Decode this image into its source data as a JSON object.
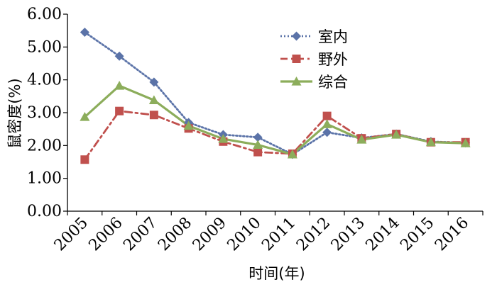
{
  "chart_data": {
    "type": "line",
    "title": "",
    "xlabel": "时间(年)",
    "ylabel": "鼠密度(%)",
    "categories": [
      "2005",
      "2006",
      "2007",
      "2008",
      "2009",
      "2010",
      "2011",
      "2012",
      "2013",
      "2014",
      "2015",
      "2016"
    ],
    "y_ticks": [
      "0.00",
      "1.00",
      "2.00",
      "3.00",
      "4.00",
      "5.00",
      "6.00"
    ],
    "ylim": [
      0,
      6
    ],
    "grid": false,
    "legend_position": "top-right",
    "series": [
      {
        "name": "室内",
        "color": "#5b73a8",
        "line_style": "dotted",
        "marker": "diamond",
        "values": [
          5.45,
          4.72,
          3.93,
          2.7,
          2.33,
          2.25,
          1.73,
          2.4,
          2.23,
          2.35,
          2.12,
          2.08
        ]
      },
      {
        "name": "野外",
        "color": "#c0504d",
        "line_style": "dashdot",
        "marker": "square",
        "values": [
          1.57,
          3.05,
          2.93,
          2.52,
          2.12,
          1.8,
          1.75,
          2.9,
          2.22,
          2.35,
          2.1,
          2.1
        ]
      },
      {
        "name": "综合",
        "color": "#8cad5b",
        "line_style": "solid",
        "marker": "triangle",
        "values": [
          2.87,
          3.82,
          3.38,
          2.6,
          2.2,
          2.02,
          1.73,
          2.65,
          2.18,
          2.33,
          2.1,
          2.07
        ]
      }
    ]
  }
}
